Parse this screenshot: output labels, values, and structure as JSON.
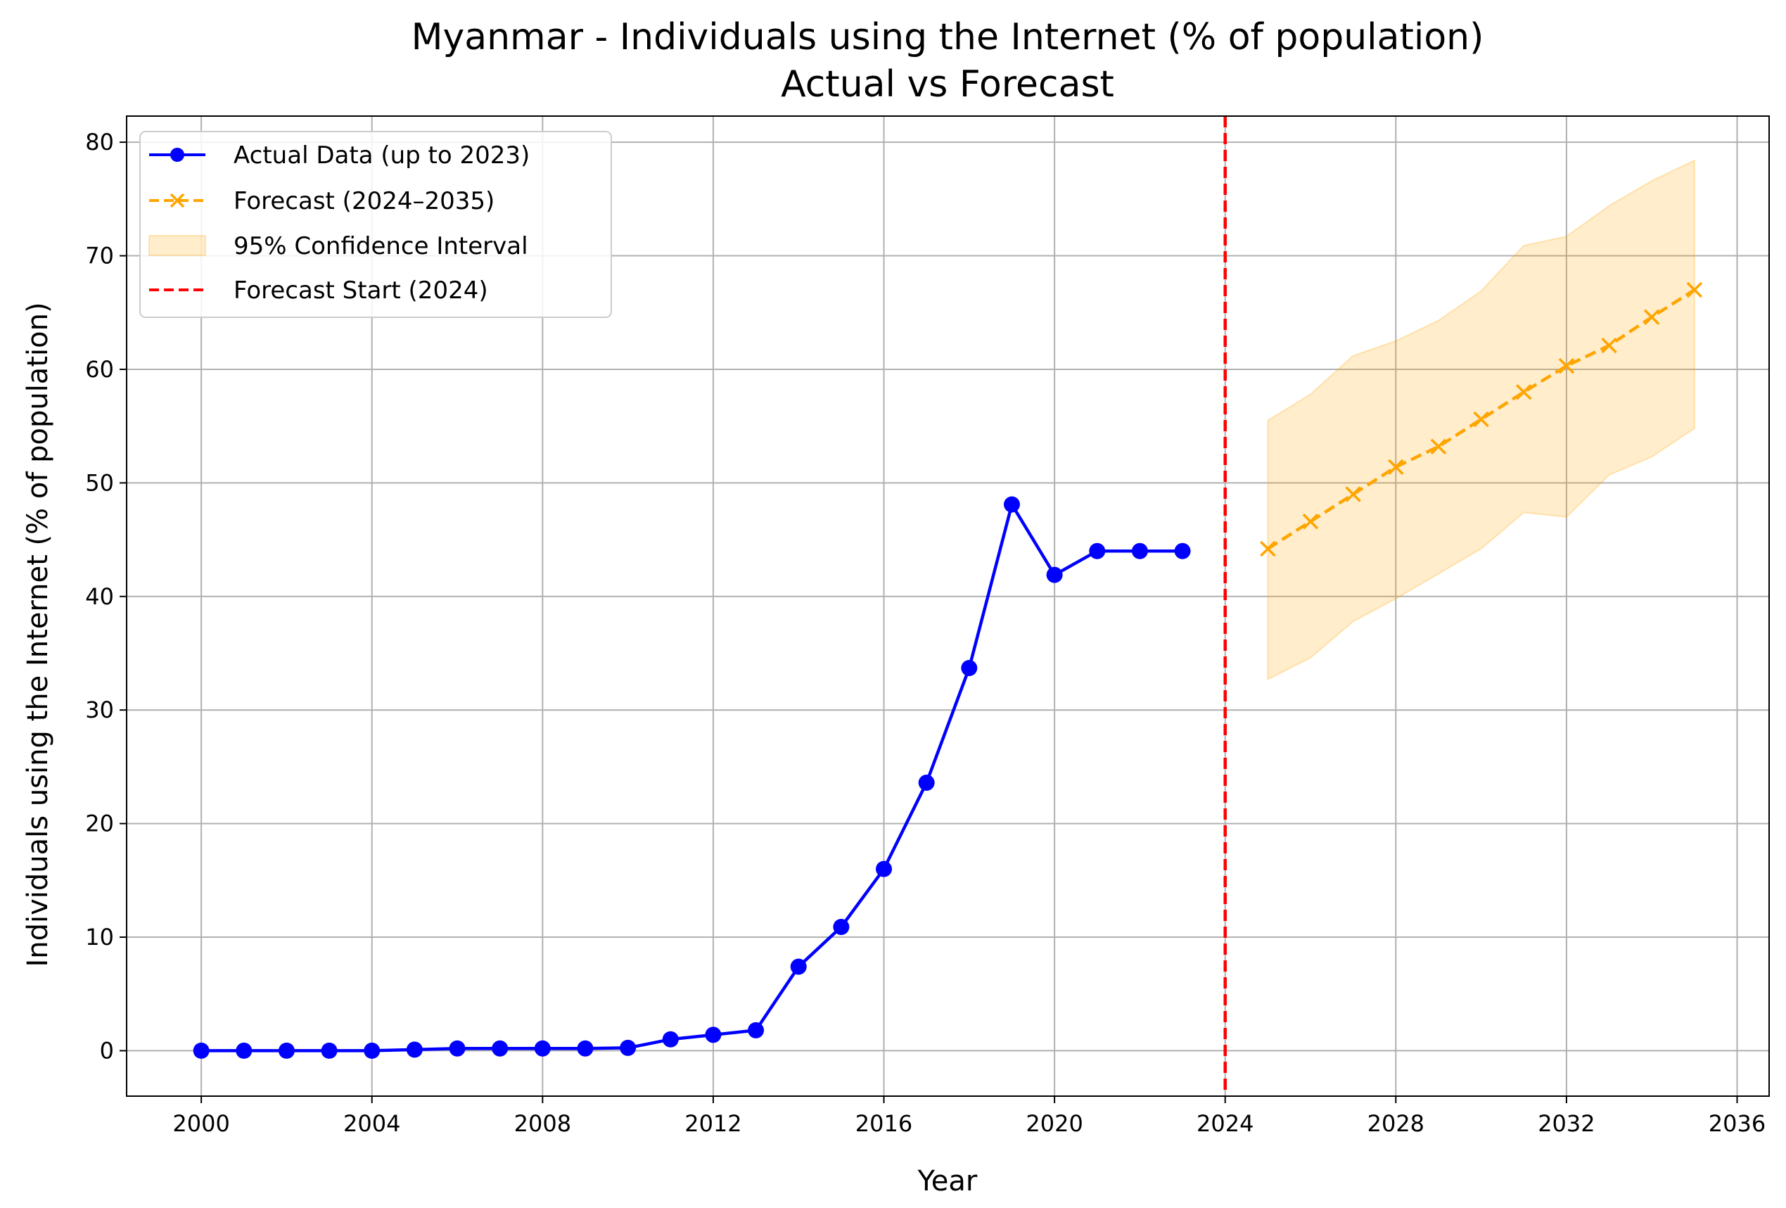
{
  "chart_data": {
    "type": "line",
    "title": "Myanmar - Individuals using the Internet (% of population)",
    "subtitle": "Actual vs Forecast",
    "xlabel": "Year",
    "ylabel": "Individuals using the Internet (% of population)",
    "xlim": [
      1998.25,
      2036.75
    ],
    "ylim": [
      -4.0,
      82.3
    ],
    "xticks": [
      2000,
      2004,
      2008,
      2012,
      2016,
      2020,
      2024,
      2028,
      2032,
      2036
    ],
    "yticks": [
      0,
      10,
      20,
      30,
      40,
      50,
      60,
      70,
      80
    ],
    "grid": true,
    "legend_position": "upper-left",
    "series": [
      {
        "name": "Actual Data (up to 2023)",
        "color": "#0000ff",
        "marker": "circle",
        "linestyle": "solid",
        "x": [
          2000,
          2001,
          2002,
          2003,
          2004,
          2005,
          2006,
          2007,
          2008,
          2009,
          2010,
          2011,
          2012,
          2013,
          2014,
          2015,
          2016,
          2017,
          2018,
          2019,
          2020,
          2021,
          2022,
          2023
        ],
        "y": [
          0.0,
          0.0,
          0.0,
          0.0,
          0.0,
          0.1,
          0.2,
          0.2,
          0.2,
          0.2,
          0.25,
          1.0,
          1.4,
          1.8,
          7.4,
          10.9,
          16.0,
          23.6,
          33.7,
          48.1,
          41.9,
          44.0,
          44.0,
          44.0
        ]
      },
      {
        "name": "Forecast (2024–2035)",
        "color": "#ffa500",
        "marker": "x",
        "linestyle": "dashed",
        "x": [
          2025,
          2026,
          2027,
          2028,
          2029,
          2030,
          2031,
          2032,
          2033,
          2034,
          2035
        ],
        "y": [
          44.2,
          46.6,
          49.0,
          51.4,
          53.2,
          55.6,
          58.0,
          60.3,
          62.1,
          64.6,
          67.0
        ]
      }
    ],
    "confidence_interval": {
      "name": "95% Confidence Interval",
      "color": "#ffa500",
      "opacity": 0.2,
      "x": [
        2025,
        2026,
        2027,
        2028,
        2029,
        2030,
        2031,
        2032,
        2033,
        2034,
        2035
      ],
      "lower": [
        32.7,
        34.6,
        37.8,
        39.8,
        42.0,
        44.2,
        47.4,
        47.0,
        50.7,
        52.3,
        54.8
      ],
      "upper": [
        55.5,
        57.8,
        61.2,
        62.5,
        64.3,
        66.9,
        70.9,
        71.7,
        74.4,
        76.6,
        78.4
      ]
    },
    "vline": {
      "name": "Forecast Start (2024)",
      "x": 2024,
      "color": "#ff0000",
      "linestyle": "dashed"
    }
  }
}
